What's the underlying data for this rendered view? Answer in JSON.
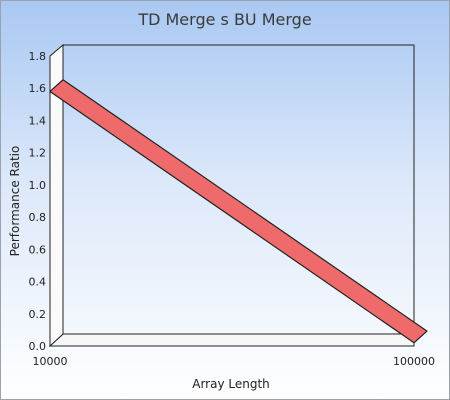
{
  "chart_data": {
    "type": "line",
    "title": "TD Merge s BU Merge",
    "xlabel": "Array Length",
    "ylabel": "Performance Ratio",
    "x": [
      10000,
      100000
    ],
    "x_tick_labels": [
      "10000",
      "100000"
    ],
    "y_ticks": [
      "0.0",
      "0.2",
      "0.4",
      "0.6",
      "0.8",
      "1.0",
      "1.2",
      "1.4",
      "1.6",
      "1.8"
    ],
    "ylim": [
      0,
      1.8
    ],
    "series": [
      {
        "values": [
          1.58,
          0.02
        ]
      }
    ],
    "grid": false,
    "colors": {
      "line_fill": "#ef6b6b",
      "line_edge": "#222222"
    }
  }
}
